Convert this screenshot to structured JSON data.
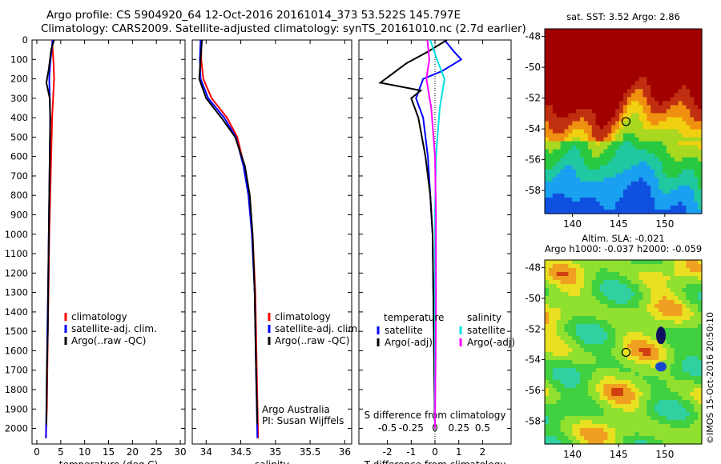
{
  "header": {
    "line1": "Argo profile: CS 5904920_64 12-Oct-2016 20161014_373 53.522S 145.797E",
    "line2": "Climatology: CARS2009. Satellite-adjusted climatology: synTS_20161010.nc (2.7d earlier)"
  },
  "timestamp": "©IMOS 15-Oct-2016 20:50:10",
  "colors": {
    "climatology": "#ff0000",
    "satellite": "#0000ff",
    "argo": "#000000",
    "salinity_satellite": "#00e0e0",
    "salinity_argo": "#ff00ff"
  },
  "chart_data": [
    {
      "type": "line",
      "xlabel": "temperature (deg C)",
      "ylabel": "",
      "xlim": [
        -1,
        31
      ],
      "ylim": [
        2080,
        0
      ],
      "xticks": [
        0,
        5,
        10,
        15,
        20,
        25,
        30
      ],
      "yticks": [
        0,
        100,
        200,
        300,
        400,
        500,
        600,
        700,
        800,
        900,
        1000,
        1100,
        1200,
        1300,
        1400,
        1500,
        1600,
        1700,
        1800,
        1900,
        2000
      ],
      "legend": [
        "climatology",
        "satellite-adj. clim.",
        "Argo(..raw -QC)"
      ],
      "series": [
        {
          "name": "climatology",
          "x": [
            3.2,
            3.3,
            3.5,
            3.6,
            3.4,
            3.2,
            3.0,
            2.8,
            2.6,
            2.5,
            2.3,
            2.2,
            2.1,
            1.9
          ],
          "y": [
            0,
            50,
            120,
            200,
            300,
            400,
            600,
            800,
            1000,
            1200,
            1500,
            1700,
            1900,
            2050
          ]
        },
        {
          "name": "satellite-adj. clim.",
          "x": [
            3.3,
            3.1,
            2.8,
            2.6,
            2.7,
            2.8,
            2.7,
            2.6,
            2.5,
            2.4,
            2.2,
            2.1,
            2.0,
            1.9
          ],
          "y": [
            0,
            50,
            120,
            200,
            300,
            400,
            600,
            800,
            1000,
            1200,
            1500,
            1700,
            1900,
            2050
          ]
        },
        {
          "name": "Argo(..raw -QC)",
          "x": [
            3.6,
            3.0,
            2.5,
            2.0,
            2.7,
            2.8,
            2.7,
            2.6,
            2.5,
            2.4,
            2.3,
            2.1,
            2.0
          ],
          "y": [
            0,
            50,
            150,
            220,
            300,
            400,
            600,
            800,
            1000,
            1200,
            1500,
            1700,
            1980
          ]
        }
      ]
    },
    {
      "type": "line",
      "xlabel": "salinity",
      "xlim": [
        33.8,
        36.1
      ],
      "ylim": [
        2080,
        0
      ],
      "xticks": [
        34,
        34.5,
        35,
        35.5,
        36
      ],
      "legend": [
        "climatology",
        "satellite-adj. clim.",
        "Argo(..raw -QC)"
      ],
      "annotation": [
        "Argo Australia",
        "PI: Susan Wijffels"
      ],
      "series": [
        {
          "name": "climatology",
          "x": [
            33.93,
            33.93,
            33.96,
            34.08,
            34.3,
            34.45,
            34.55,
            34.62,
            34.67,
            34.71,
            34.73,
            34.75
          ],
          "y": [
            0,
            100,
            200,
            300,
            400,
            500,
            650,
            800,
            1000,
            1300,
            1700,
            2050
          ]
        },
        {
          "name": "satellite-adj. clim.",
          "x": [
            33.92,
            33.91,
            33.92,
            34.03,
            34.26,
            34.43,
            34.54,
            34.61,
            34.66,
            34.7,
            34.72,
            34.74
          ],
          "y": [
            0,
            100,
            200,
            300,
            400,
            500,
            650,
            800,
            1000,
            1300,
            1700,
            2050
          ]
        },
        {
          "name": "Argo(..raw -QC)",
          "x": [
            33.94,
            33.92,
            33.9,
            34.0,
            34.22,
            34.42,
            34.56,
            34.63,
            34.67,
            34.7,
            34.72,
            34.74
          ],
          "y": [
            0,
            100,
            200,
            300,
            400,
            500,
            650,
            800,
            1000,
            1300,
            1700,
            1980
          ]
        }
      ]
    },
    {
      "type": "line",
      "xlabel": "T difference from climatology",
      "xlabel2": "S difference from climatology",
      "xlim": [
        -3.2,
        3.2
      ],
      "ylim": [
        2080,
        0
      ],
      "xticks": [
        -2,
        -1,
        0,
        1,
        2
      ],
      "s_ticks": [
        "-0.5",
        "-0.25",
        "0",
        "0.25",
        "0.5"
      ],
      "legend_t": {
        "heading": "temperature",
        "items": [
          "satellite",
          "Argo(-adj)"
        ]
      },
      "legend_s": {
        "heading": "salinity",
        "items": [
          "satellite",
          "Argo(-adj)"
        ]
      },
      "series": [
        {
          "name": "temperature satellite",
          "x": [
            0.4,
            0.8,
            1.1,
            0.3,
            -0.5,
            -0.8,
            -0.5,
            -0.3,
            -0.2,
            -0.1,
            -0.05,
            0
          ],
          "y": [
            0,
            60,
            100,
            160,
            200,
            300,
            400,
            600,
            800,
            1000,
            1500,
            2000
          ]
        },
        {
          "name": "temperature Argo(-adj)",
          "x": [
            0.5,
            -0.3,
            -1.2,
            -2.3,
            -0.6,
            -1.0,
            -0.7,
            -0.4,
            -0.2,
            -0.1,
            -0.05,
            0
          ],
          "y": [
            0,
            60,
            120,
            220,
            260,
            300,
            400,
            600,
            800,
            1000,
            1500,
            2000
          ]
        },
        {
          "name": "salinity satellite",
          "x": [
            -0.05,
            0.02,
            0.1,
            0.05,
            0.01,
            0,
            0,
            0
          ],
          "y": [
            0,
            100,
            200,
            350,
            600,
            900,
            1400,
            2000
          ]
        },
        {
          "name": "salinity Argo(-adj)",
          "x": [
            -0.08,
            -0.06,
            -0.09,
            -0.04,
            0.0,
            0.01,
            0.01,
            0.0
          ],
          "y": [
            0,
            100,
            200,
            350,
            600,
            900,
            1400,
            2000
          ]
        }
      ]
    }
  ],
  "maps": [
    {
      "title": "sat. SST: 3.52 Argo: 2.86",
      "xticks": [
        "140",
        "145",
        "150"
      ],
      "yticks": [
        "-48",
        "-50",
        "-52",
        "-54",
        "-56",
        "-58"
      ],
      "lon": [
        137,
        154
      ],
      "lat": [
        -59.5,
        -47.5
      ],
      "marker": {
        "lon": 145.797,
        "lat": -53.522
      }
    },
    {
      "title": "Altim. SLA: -0.021",
      "subtitle": "Argo h1000: -0.037 h2000: -0.059",
      "xticks": [
        "140",
        "145",
        "150"
      ],
      "yticks": [
        "-48",
        "-50",
        "-52",
        "-54",
        "-56",
        "-58"
      ],
      "lon": [
        137,
        154
      ],
      "lat": [
        -59.5,
        -47.5
      ],
      "marker": {
        "lon": 145.797,
        "lat": -53.522
      }
    }
  ]
}
